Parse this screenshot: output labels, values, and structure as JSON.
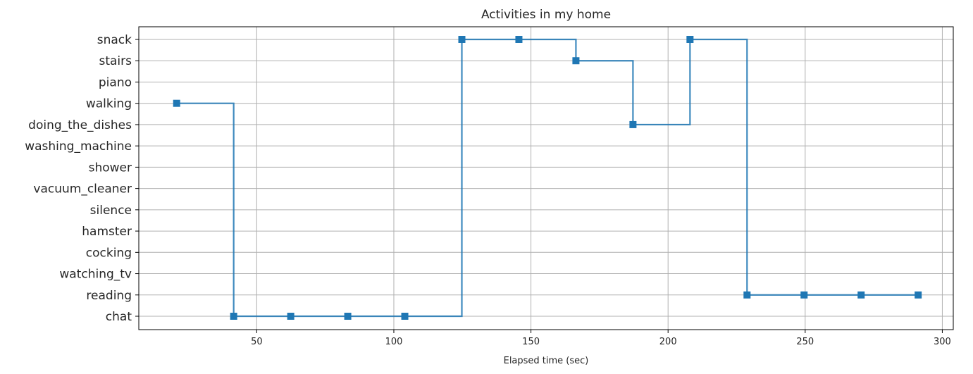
{
  "chart_data": {
    "type": "line",
    "style": "step",
    "title": "Activities in my home",
    "xlabel": "Elapsed time (sec)",
    "ylabel": "",
    "xlim": [
      7,
      304
    ],
    "xticks": [
      50,
      100,
      150,
      200,
      250,
      300
    ],
    "y_categories": [
      "chat",
      "reading",
      "watching_tv",
      "cocking",
      "hamster",
      "silence",
      "vacuum_cleaner",
      "shower",
      "washing_machine",
      "doing_the_dishes",
      "walking",
      "piano",
      "stairs",
      "snack"
    ],
    "grid": true,
    "marker": "square",
    "color": "#1f77b4",
    "series": [
      {
        "x": [
          20.8,
          41.6,
          62.4,
          83.2,
          104.0,
          124.8,
          145.6,
          166.4,
          187.2,
          208.0,
          228.8,
          249.6,
          270.4,
          291.2
        ],
        "y": [
          "walking",
          "chat",
          "chat",
          "chat",
          "chat",
          "snack",
          "snack",
          "stairs",
          "doing_the_dishes",
          "snack",
          "reading",
          "reading",
          "reading",
          "reading"
        ]
      }
    ]
  }
}
